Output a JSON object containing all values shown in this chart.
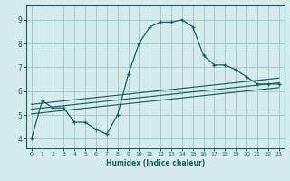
{
  "xlabel": "Humidex (Indice chaleur)",
  "ylabel": "",
  "bg_color": "#d4ecec",
  "grid_color": "#a8cccc",
  "line_color": "#1a6060",
  "xlim": [
    -0.5,
    23.5
  ],
  "ylim": [
    3.6,
    9.6
  ],
  "xticks": [
    0,
    1,
    2,
    3,
    4,
    5,
    6,
    7,
    8,
    9,
    10,
    11,
    12,
    13,
    14,
    15,
    16,
    17,
    18,
    19,
    20,
    21,
    22,
    23
  ],
  "yticks": [
    4,
    5,
    6,
    7,
    8,
    9
  ],
  "main_line_x": [
    0,
    1,
    2,
    3,
    4,
    5,
    6,
    7,
    8,
    9,
    10,
    11,
    12,
    13,
    14,
    15,
    16,
    17,
    18,
    19,
    20,
    21,
    22,
    23
  ],
  "main_line_y": [
    4.0,
    5.6,
    5.3,
    5.3,
    4.7,
    4.7,
    4.4,
    4.2,
    5.0,
    6.7,
    8.0,
    8.7,
    8.9,
    8.9,
    9.0,
    8.7,
    7.5,
    7.1,
    7.1,
    6.9,
    6.6,
    6.3,
    6.3,
    6.3
  ],
  "line2_x": [
    0,
    23
  ],
  "line2_y": [
    5.05,
    6.15
  ],
  "line3_x": [
    0,
    23
  ],
  "line3_y": [
    5.25,
    6.35
  ],
  "line4_x": [
    0,
    23
  ],
  "line4_y": [
    5.45,
    6.55
  ]
}
